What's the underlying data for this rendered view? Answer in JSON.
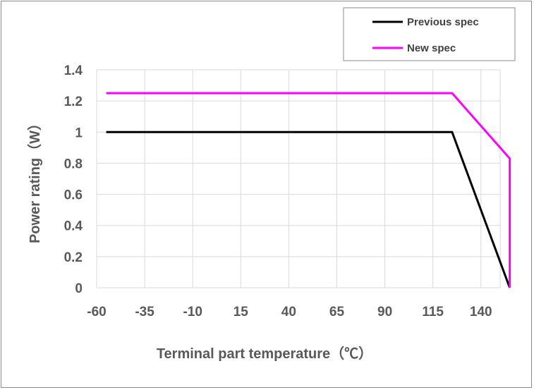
{
  "chart_data": {
    "type": "line",
    "xlabel": "Terminal part temperature（℃）",
    "ylabel": "Power rating（W）",
    "xlim": [
      -60,
      150
    ],
    "ylim": [
      0,
      1.4
    ],
    "x_ticks": [
      -60,
      -35,
      -10,
      15,
      40,
      65,
      90,
      115,
      140
    ],
    "y_ticks": [
      0,
      0.2,
      0.4,
      0.6,
      0.8,
      1,
      1.2,
      1.4
    ],
    "x_tick_labels": [
      "-60",
      "-35",
      "-10",
      "15",
      "40",
      "65",
      "90",
      "115",
      "140"
    ],
    "y_tick_labels": [
      "0",
      "0.2",
      "0.4",
      "0.6",
      "0.8",
      "1",
      "1.2",
      "1.4"
    ],
    "grid": true,
    "legend_position": "top-right",
    "series": [
      {
        "name": "Previous spec",
        "color": "#000000",
        "points": [
          [
            -55,
            1
          ],
          [
            125,
            1
          ],
          [
            155,
            0
          ]
        ]
      },
      {
        "name": "New spec",
        "color": "#ff00ff",
        "points": [
          [
            -55,
            1.25
          ],
          [
            125,
            1.25
          ],
          [
            155,
            0.83
          ],
          [
            155,
            0
          ]
        ]
      }
    ]
  }
}
